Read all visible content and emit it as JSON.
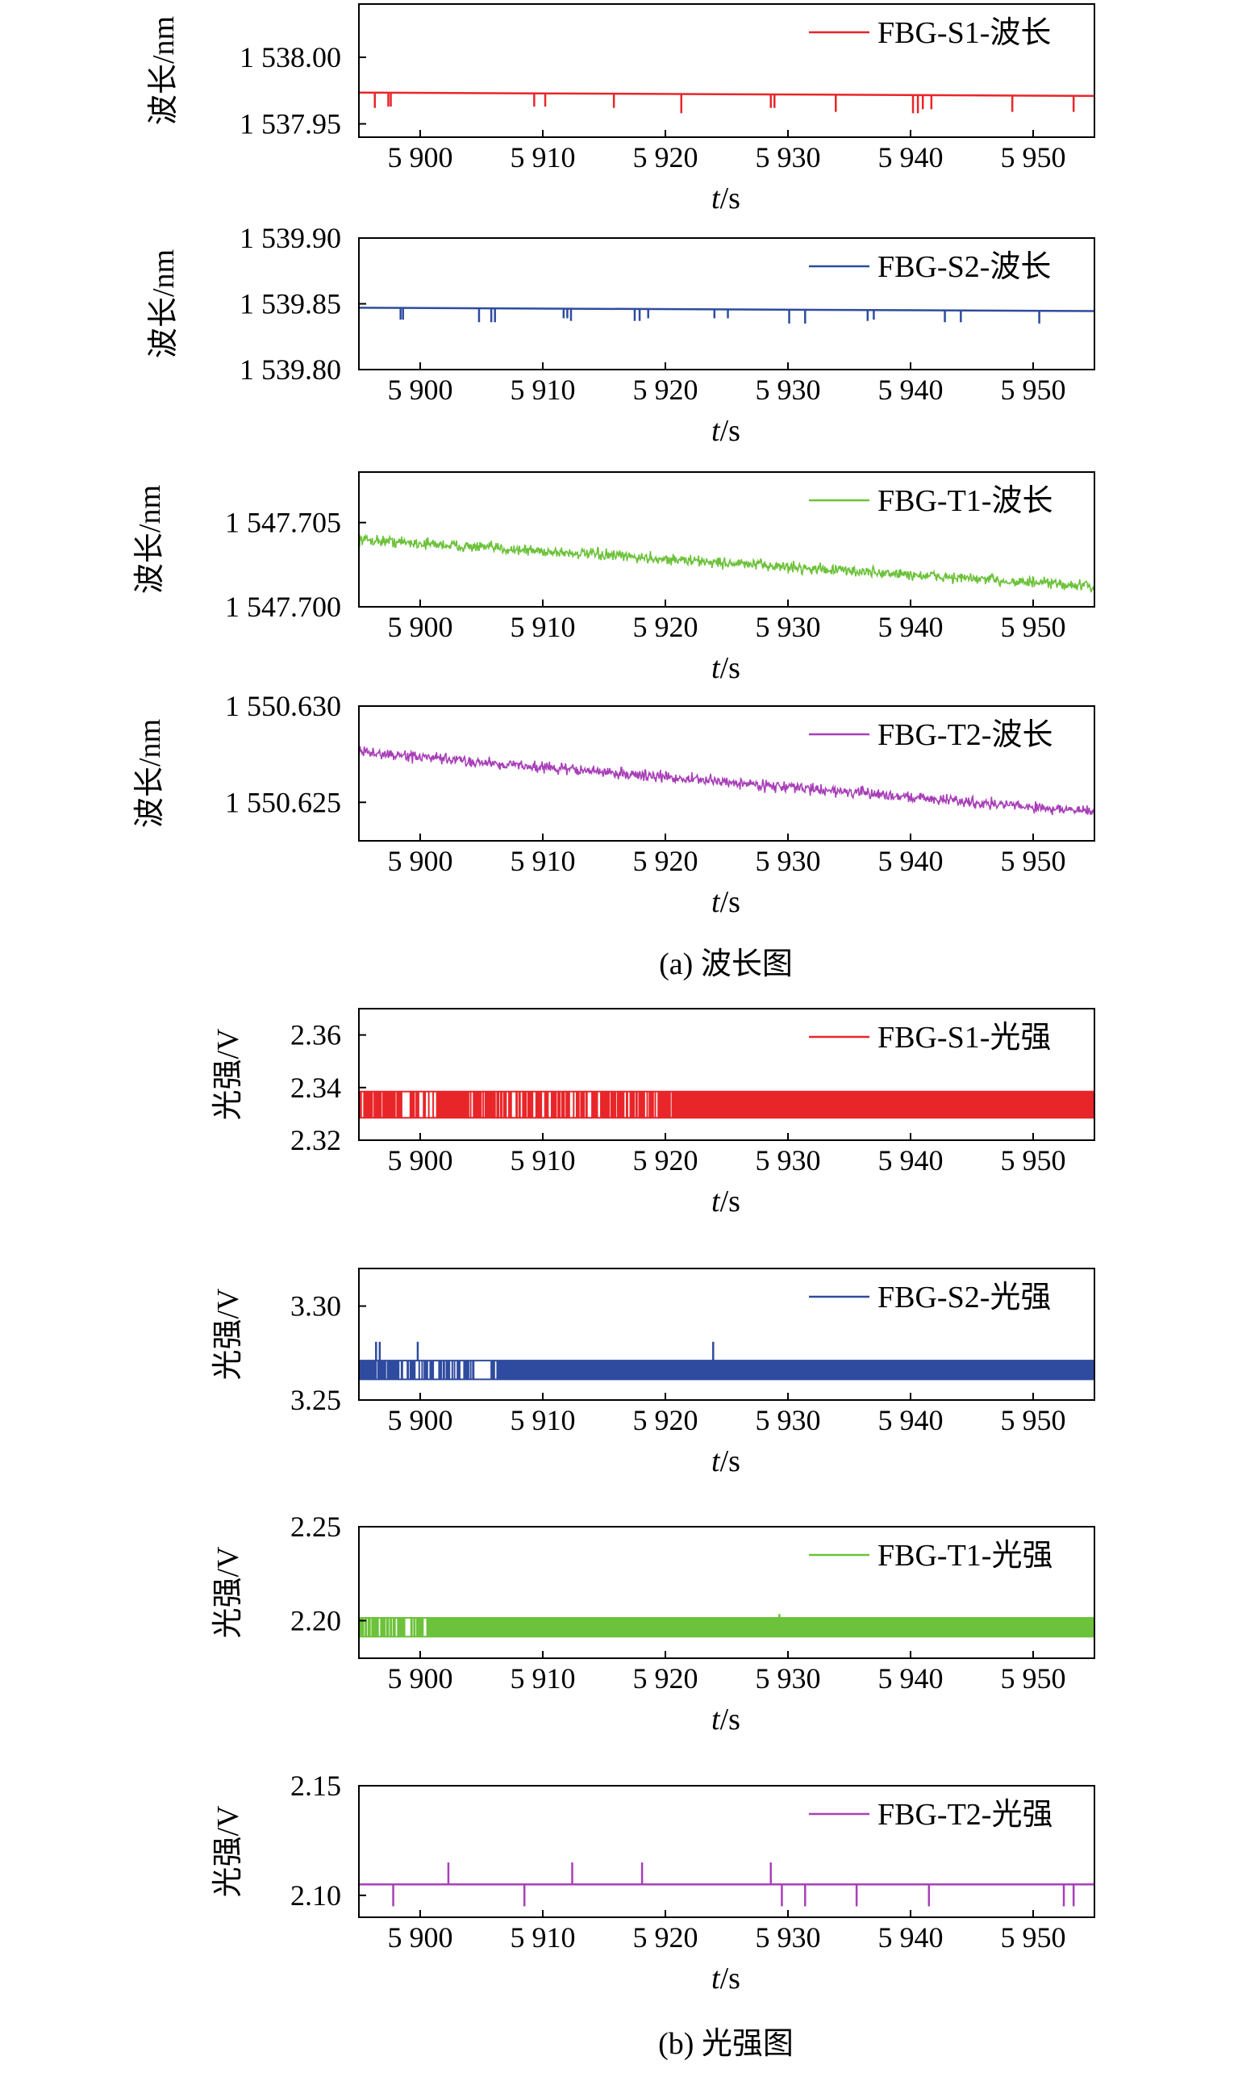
{
  "caption_a": "(a) 波长图",
  "caption_b": "(b) 光强图",
  "colors": {
    "red": "#e8262a",
    "blue": "#2e4b9f",
    "green": "#6cc23a",
    "purple": "#a83fb8"
  },
  "chart_data": [
    {
      "type": "line",
      "panel": "a",
      "xlabel": "t/s",
      "ylabel": "波长/nm",
      "xlim": [
        5895,
        5955
      ],
      "ylim": [
        1537.94,
        1538.04
      ],
      "x_ticks": [
        5900,
        5910,
        5920,
        5930,
        5940,
        5950
      ],
      "x_tick_labels": [
        "5 900",
        "5 910",
        "5 920",
        "5 930",
        "5 940",
        "5 950"
      ],
      "y_ticks": [
        1537.95,
        1538.0
      ],
      "y_tick_labels": [
        "1 537.95",
        "1 538.00"
      ],
      "legend_position": "top-right",
      "series": [
        {
          "name": "FBG-S1-波长",
          "color": "#e8262a",
          "style": "baseline-spikes",
          "start": [
            5895,
            1537.9735
          ],
          "end": [
            5955,
            1537.971
          ],
          "spikes": [
            [
              5896.3,
              1537.962
            ],
            [
              5897.4,
              1537.963
            ],
            [
              5897.6,
              1537.963
            ],
            [
              5909.3,
              1537.963
            ],
            [
              5910.2,
              1537.963
            ],
            [
              5915.8,
              1537.962
            ],
            [
              5921.3,
              1537.958
            ],
            [
              5928.6,
              1537.962
            ],
            [
              5928.9,
              1537.962
            ],
            [
              5933.9,
              1537.959
            ],
            [
              5940.2,
              1537.958
            ],
            [
              5940.6,
              1537.958
            ],
            [
              5941.0,
              1537.961
            ],
            [
              5941.7,
              1537.961
            ],
            [
              5948.3,
              1537.959
            ],
            [
              5953.3,
              1537.959
            ]
          ]
        }
      ]
    },
    {
      "type": "line",
      "panel": "a",
      "xlabel": "t/s",
      "ylabel": "波长/nm",
      "xlim": [
        5895,
        5955
      ],
      "ylim": [
        1539.8,
        1539.9
      ],
      "x_ticks": [
        5900,
        5910,
        5920,
        5930,
        5940,
        5950
      ],
      "x_tick_labels": [
        "5 900",
        "5 910",
        "5 920",
        "5 930",
        "5 940",
        "5 950"
      ],
      "y_ticks": [
        1539.8,
        1539.85,
        1539.9
      ],
      "y_tick_labels": [
        "1 539.80",
        "1 539.85",
        "1 539.90"
      ],
      "legend_position": "top-right",
      "series": [
        {
          "name": "FBG-S2-波长",
          "color": "#2e4b9f",
          "style": "baseline-spikes",
          "start": [
            5895,
            1539.847
          ],
          "end": [
            5955,
            1539.8445
          ],
          "spikes": [
            [
              5898.4,
              1539.838
            ],
            [
              5898.6,
              1539.838
            ],
            [
              5904.8,
              1539.836
            ],
            [
              5905.8,
              1539.836
            ],
            [
              5906.1,
              1539.836
            ],
            [
              5911.7,
              1539.839
            ],
            [
              5912.0,
              1539.839
            ],
            [
              5912.3,
              1539.837
            ],
            [
              5917.5,
              1539.837
            ],
            [
              5917.9,
              1539.837
            ],
            [
              5918.6,
              1539.839
            ],
            [
              5924.0,
              1539.839
            ],
            [
              5925.1,
              1539.839
            ],
            [
              5930.1,
              1539.835
            ],
            [
              5931.4,
              1539.835
            ],
            [
              5936.5,
              1539.837
            ],
            [
              5937.0,
              1539.838
            ],
            [
              5942.8,
              1539.836
            ],
            [
              5944.1,
              1539.836
            ],
            [
              5950.5,
              1539.835
            ]
          ]
        }
      ]
    },
    {
      "type": "line",
      "panel": "a",
      "xlabel": "t/s",
      "ylabel": "波长/nm",
      "xlim": [
        5895,
        5955
      ],
      "ylim": [
        1547.7,
        1547.708
      ],
      "x_ticks": [
        5900,
        5910,
        5920,
        5930,
        5940,
        5950
      ],
      "x_tick_labels": [
        "5 900",
        "5 910",
        "5 920",
        "5 930",
        "5 940",
        "5 950"
      ],
      "y_ticks": [
        1547.7,
        1547.705
      ],
      "y_tick_labels": [
        "1 547.700",
        "1 547.705"
      ],
      "legend_position": "top-right",
      "series": [
        {
          "name": "FBG-T1-波长",
          "color": "#6cc23a",
          "style": "noisy-trend",
          "start": [
            5895,
            1547.704
          ],
          "end": [
            5955,
            1547.7012
          ],
          "noise": 0.00035
        }
      ]
    },
    {
      "type": "line",
      "panel": "a",
      "xlabel": "t/s",
      "ylabel": "波长/nm",
      "xlim": [
        5895,
        5955
      ],
      "ylim": [
        1550.623,
        1550.63
      ],
      "x_ticks": [
        5900,
        5910,
        5920,
        5930,
        5940,
        5950
      ],
      "x_tick_labels": [
        "5 900",
        "5 910",
        "5 920",
        "5 930",
        "5 940",
        "5 950"
      ],
      "y_ticks": [
        1550.625,
        1550.63
      ],
      "y_tick_labels": [
        "1 550.625",
        "1 550.630"
      ],
      "legend_position": "top-right",
      "series": [
        {
          "name": "FBG-T2-波长",
          "color": "#a83fb8",
          "style": "noisy-trend",
          "start": [
            5895,
            1550.6276
          ],
          "end": [
            5955,
            1550.6245
          ],
          "noise": 0.0003
        }
      ]
    },
    {
      "type": "line",
      "panel": "b",
      "xlabel": "t/s",
      "ylabel": "光强/V",
      "xlim": [
        5895,
        5955
      ],
      "ylim": [
        2.32,
        2.37
      ],
      "x_ticks": [
        5900,
        5910,
        5920,
        5930,
        5940,
        5950
      ],
      "x_tick_labels": [
        "5 900",
        "5 910",
        "5 920",
        "5 930",
        "5 940",
        "5 950"
      ],
      "y_ticks": [
        2.32,
        2.34,
        2.36
      ],
      "y_tick_labels": [
        "2.32",
        "2.34",
        "2.36"
      ],
      "legend_position": "top-right",
      "series": [
        {
          "name": "FBG-S1-光强",
          "color": "#e8262a",
          "style": "two-level",
          "levels": [
            2.3285,
            2.3385
          ],
          "dense_from": 5920.5
        }
      ]
    },
    {
      "type": "line",
      "panel": "b",
      "xlabel": "t/s",
      "ylabel": "光强/V",
      "xlim": [
        5895,
        5955
      ],
      "ylim": [
        3.25,
        3.32
      ],
      "x_ticks": [
        5900,
        5910,
        5920,
        5930,
        5940,
        5950
      ],
      "x_tick_labels": [
        "5 900",
        "5 910",
        "5 920",
        "5 930",
        "5 940",
        "5 950"
      ],
      "y_ticks": [
        3.25,
        3.3
      ],
      "y_tick_labels": [
        "3.25",
        "3.30"
      ],
      "legend_position": "top-right",
      "series": [
        {
          "name": "FBG-S2-光强",
          "color": "#2e4b9f",
          "style": "two-level",
          "levels": [
            3.261,
            3.271
          ],
          "dense_from": 5906.5,
          "gap": [
            5904.5,
            5905.8
          ],
          "up_spikes": [
            [
              5896.4,
              3.281
            ],
            [
              5896.7,
              3.281
            ],
            [
              5899.8,
              3.281
            ],
            [
              5923.9,
              3.281
            ]
          ]
        }
      ]
    },
    {
      "type": "line",
      "panel": "b",
      "xlabel": "t/s",
      "ylabel": "光强/V",
      "xlim": [
        5895,
        5955
      ],
      "ylim": [
        2.18,
        2.25
      ],
      "x_ticks": [
        5900,
        5910,
        5920,
        5930,
        5940,
        5950
      ],
      "x_tick_labels": [
        "5 900",
        "5 910",
        "5 920",
        "5 930",
        "5 940",
        "5 950"
      ],
      "y_ticks": [
        2.2,
        2.25
      ],
      "y_tick_labels": [
        "2.20",
        "2.25"
      ],
      "legend_position": "top-right",
      "series": [
        {
          "name": "FBG-T1-光强",
          "color": "#6cc23a",
          "style": "two-level",
          "levels": [
            2.1915,
            2.2015
          ],
          "dense_from": 5900.5,
          "up_spikes": [
            [
              5929.3,
              2.2035
            ]
          ]
        }
      ]
    },
    {
      "type": "line",
      "panel": "b",
      "xlabel": "t/s",
      "ylabel": "光强/V",
      "xlim": [
        5895,
        5955
      ],
      "ylim": [
        2.09,
        2.15
      ],
      "x_ticks": [
        5900,
        5910,
        5920,
        5930,
        5940,
        5950
      ],
      "x_tick_labels": [
        "5 900",
        "5 910",
        "5 920",
        "5 930",
        "5 940",
        "5 950"
      ],
      "y_ticks": [
        2.1,
        2.15
      ],
      "y_tick_labels": [
        "2.10",
        "2.15"
      ],
      "legend_position": "top-right",
      "series": [
        {
          "name": "FBG-T2-光强",
          "color": "#a83fb8",
          "style": "baseline-spikes",
          "start": [
            5895,
            2.105
          ],
          "end": [
            5955,
            2.105
          ],
          "spikes": [
            [
              5897.8,
              2.095
            ],
            [
              5902.3,
              2.115
            ],
            [
              5908.5,
              2.095
            ],
            [
              5912.4,
              2.115
            ],
            [
              5918.1,
              2.115
            ],
            [
              5928.6,
              2.115
            ],
            [
              5929.5,
              2.095
            ],
            [
              5931.4,
              2.095
            ],
            [
              5935.6,
              2.095
            ],
            [
              5941.5,
              2.095
            ],
            [
              5952.5,
              2.095
            ],
            [
              5953.3,
              2.095
            ]
          ]
        }
      ]
    }
  ]
}
